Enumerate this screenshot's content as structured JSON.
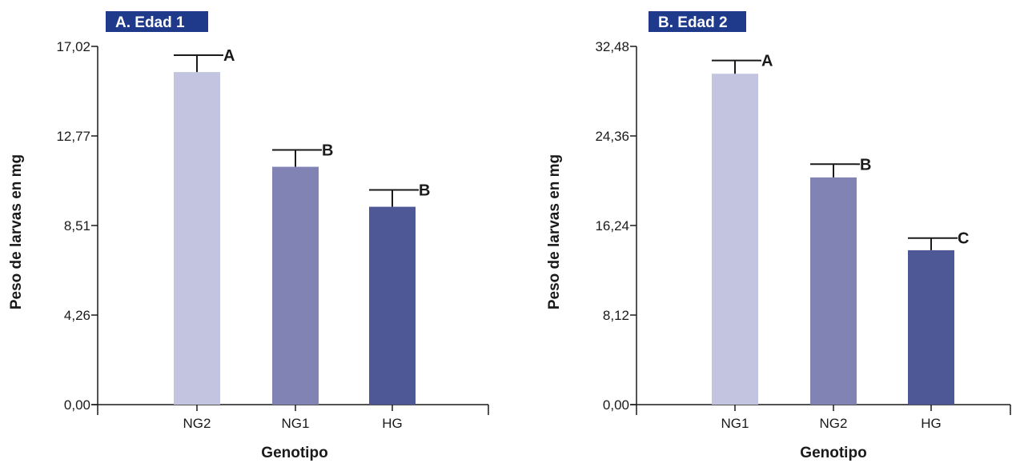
{
  "chart_data": [
    {
      "type": "bar",
      "panel_title": "A. Edad 1",
      "panel_title_bg": "#1f3a8a",
      "xlabel": "Genotipo",
      "ylabel": "Peso de larvas en mg",
      "ylim": [
        0,
        17.02
      ],
      "yticks": [
        "0,00",
        "4,26",
        "8,51",
        "12,77",
        "17,02"
      ],
      "categories": [
        "NG2",
        "NG1",
        "HG"
      ],
      "values": [
        15.8,
        11.3,
        9.4
      ],
      "errors": [
        0.8,
        0.8,
        0.8
      ],
      "significance": [
        "A",
        "B",
        "B"
      ],
      "colors": [
        "#c3c5e0",
        "#8183b5",
        "#4e5897"
      ],
      "grid": false
    },
    {
      "type": "bar",
      "panel_title": "B. Edad 2",
      "panel_title_bg": "#1f3a8a",
      "xlabel": "Genotipo",
      "ylabel": "Peso de larvas en mg",
      "ylim": [
        0,
        32.48
      ],
      "yticks": [
        "0,00",
        "8,12",
        "16,24",
        "24,36",
        "32,48"
      ],
      "categories": [
        "NG1",
        "NG2",
        "HG"
      ],
      "values": [
        30.0,
        20.6,
        14.0
      ],
      "errors": [
        1.2,
        1.2,
        1.1
      ],
      "significance": [
        "A",
        "B",
        "C"
      ],
      "colors": [
        "#c3c5e0",
        "#8183b5",
        "#4e5897"
      ],
      "grid": false
    }
  ]
}
